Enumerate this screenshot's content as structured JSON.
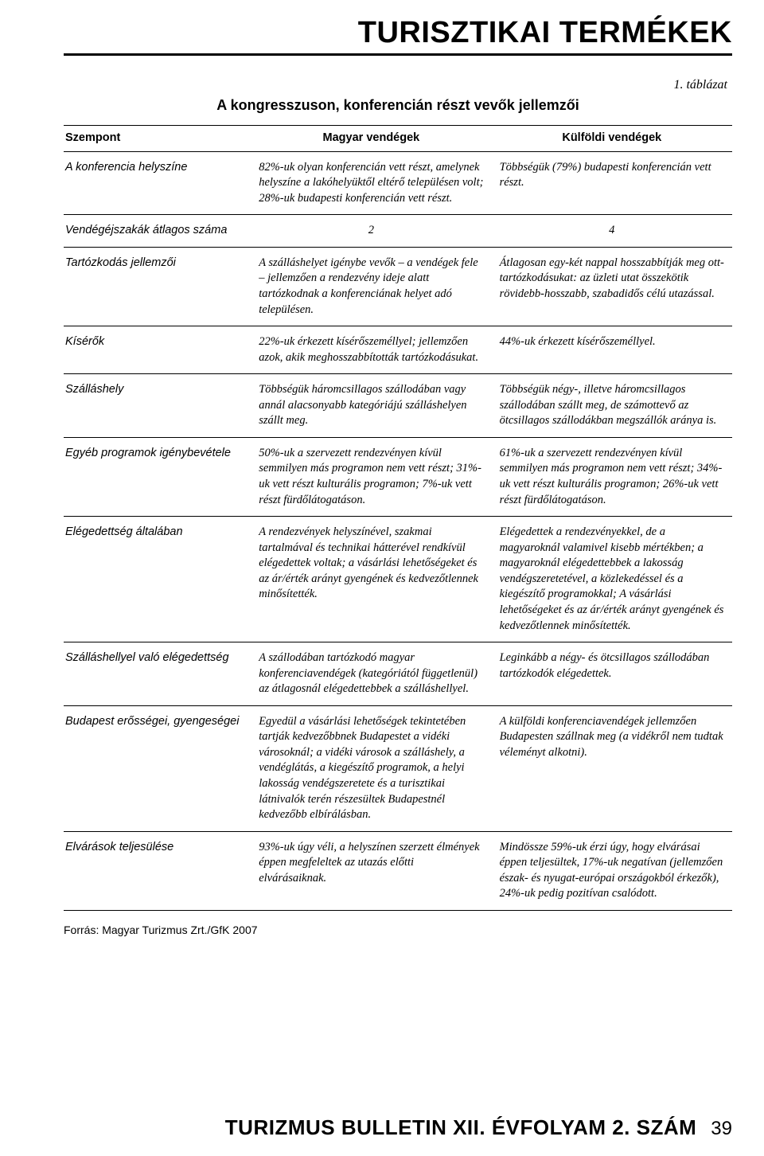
{
  "header": {
    "section_title": "TURISZTIKAI TERMÉKEK"
  },
  "table": {
    "number_label": "1. táblázat",
    "caption": "A kongresszuson, konferencián részt vevők jellemzői",
    "columns": {
      "aspect": "Szempont",
      "hungarian": "Magyar vendégek",
      "foreign": "Külföldi vendégek"
    },
    "rows": [
      {
        "aspect": "A konferencia helyszíne",
        "hungarian": "82%-uk olyan konferencián vett részt, amelynek helyszíne a lakóhelyüktől eltérő településen volt; 28%-uk budapesti konferencián vett részt.",
        "foreign": "Többségük (79%) budapesti konferencián vett részt."
      },
      {
        "aspect": "Vendégéjszakák átlagos száma",
        "hungarian_num": "2",
        "foreign_num": "4",
        "numeric": true
      },
      {
        "aspect": "Tartózkodás jellemzői",
        "hungarian": "A szálláshelyet igénybe vevők – a vendégek fele – jellemzően a rendezvény ideje alatt tartózkodnak a konferenciának helyet adó településen.",
        "foreign": "Átlagosan egy-két nappal hosszabbítják meg ott-tartózkodásukat: az üzleti utat összekötik rövidebb-hosszabb, szabadidős célú utazással."
      },
      {
        "aspect": "Kísérők",
        "hungarian": "22%-uk érkezett kísérőszeméllyel; jellemzően azok, akik meghosszabbították tartózkodásukat.",
        "foreign": "44%-uk érkezett kísérőszeméllyel."
      },
      {
        "aspect": "Szálláshely",
        "hungarian": "Többségük háromcsillagos szállodában vagy annál alacsonyabb kategóriájú szálláshelyen szállt meg.",
        "foreign": "Többségük négy-, illetve háromcsillagos szállodában szállt meg, de számottevő az ötcsillagos szállodákban megszállók aránya is."
      },
      {
        "aspect": "Egyéb programok igénybevétele",
        "hungarian": "50%-uk a szervezett rendezvényen kívül semmilyen más programon nem vett részt; 31%-uk vett részt kulturális programon; 7%-uk vett részt fürdőlátogatáson.",
        "foreign": "61%-uk a szervezett rendezvényen kívül semmilyen más programon nem vett részt; 34%-uk vett részt kulturális programon; 26%-uk vett részt fürdőlátogatáson."
      },
      {
        "aspect": "Elégedettség általában",
        "hungarian": "A rendezvények helyszínével, szakmai tartalmával és technikai hátterével rendkívül elégedettek voltak; a vásárlási lehetőségeket és az ár/érték arányt gyengének és kedvezőtlennek minősítették.",
        "foreign": "Elégedettek a rendezvényekkel, de a magyaroknál valamivel kisebb mértékben; a magyaroknál elégedettebbek a lakosság vendégszeretetével, a közlekedéssel és a kiegészítő programokkal; A vásárlási lehetőségeket és az ár/érték arányt gyengének és kedvezőtlennek minősítették."
      },
      {
        "aspect": "Szálláshellyel való elégedettség",
        "hungarian": "A szállodában tartózkodó magyar konferenciavendégek (kategóriától függetlenül) az átlagosnál elégedettebbek a szálláshellyel.",
        "foreign": "Leginkább a négy- és ötcsillagos szállodában tartózkodók elégedettek."
      },
      {
        "aspect": "Budapest erősségei, gyengeségei",
        "hungarian": "Egyedül a vásárlási lehetőségek tekintetében tartják kedvezőbbnek Budapestet a vidéki városoknál; a vidéki városok a szálláshely, a vendéglátás, a kiegészítő programok, a helyi lakosság vendégszeretete és a turisztikai látnivalók terén részesültek Budapestnél kedvezőbb elbírálásban.",
        "foreign": "A külföldi konferenciavendégek jellemzően Budapesten szállnak meg (a vidékről nem tudtak véleményt alkotni)."
      },
      {
        "aspect": "Elvárások teljesülése",
        "hungarian": "93%-uk úgy véli, a helyszínen szerzett élmények éppen megfeleltek az utazás előtti elvárásaiknak.",
        "foreign": "Mindössze 59%-uk érzi úgy, hogy elvárásai éppen teljesültek, 17%-uk negatívan (jellemzően észak- és nyugat-európai országokból érkezők), 24%-uk pedig pozitívan csalódott."
      }
    ]
  },
  "source": "Forrás: Magyar Turizmus Zrt./GfK 2007",
  "footer": {
    "journal": "TURIZMUS BULLETIN XII. ÉVFOLYAM 2. SZÁM",
    "page": "39"
  }
}
